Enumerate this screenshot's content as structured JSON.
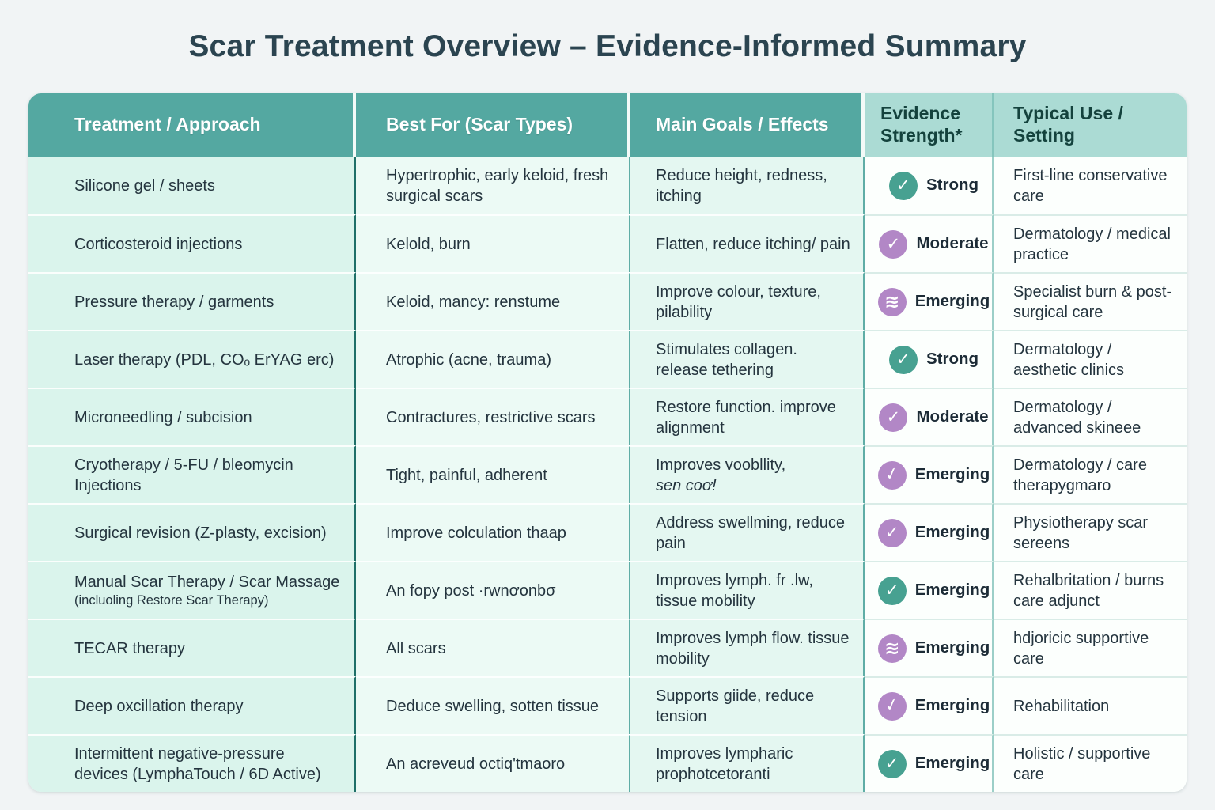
{
  "page": {
    "title": "Scar Treatment Overview – Evidence-Informed Summary",
    "background_color": "#f1f4f5"
  },
  "table": {
    "colors": {
      "header_teal": "#54a8a1",
      "header_light_teal": "#abdbd4",
      "badge_green": "#47a191",
      "badge_purple": "#b287c6",
      "mint_cell": "#daf4ec",
      "white_cell": "#fcfffd"
    },
    "headers": [
      {
        "label": "Treatment / Approach"
      },
      {
        "label": "Best For (Scar Types)"
      },
      {
        "label": "Main Goals / Effects"
      },
      {
        "label": "Evidence Strength*"
      },
      {
        "label": "Typical Use / Setting"
      }
    ],
    "rows": [
      {
        "treatment": "Silicone gel / sheets",
        "best_for": "Hypertrophic, early keloid, fresh surgical scars",
        "goals": "Reduce height, redness, itching",
        "evidence": {
          "label": "Strong",
          "color": "green",
          "icon": "check-icon"
        },
        "setting": "First-line conservative care"
      },
      {
        "treatment": "Corticosteroid injections",
        "best_for": "Kelold, burn",
        "goals": "Flatten, reduce itching/ pain",
        "evidence": {
          "label": "Moderate",
          "color": "purple",
          "icon": "check-icon"
        },
        "setting": "Dermatology / medical practice"
      },
      {
        "treatment": "Pressure therapy / garments",
        "best_for": "Keloid, mancy: renstume",
        "goals": "Improve colour, texture, pilability",
        "evidence": {
          "label": "Emerging",
          "color": "purple",
          "icon": "layers-icon"
        },
        "setting": "Specialist burn & post-surgical care"
      },
      {
        "treatment": "Laser therapy (PDL, COₒ ErYAG erc)",
        "best_for": "Atrophic (acne, trauma)",
        "goals": "Stimulates collagen. release tethering",
        "evidence": {
          "label": "Strong",
          "color": "green",
          "icon": "check-icon"
        },
        "setting": "Dermatology / aesthetic clinics"
      },
      {
        "treatment": "Microneedling / subcision",
        "best_for": "Contractures, restrictive scars",
        "goals": "Restore function. improve alignment",
        "evidence": {
          "label": "Moderate",
          "color": "purple",
          "icon": "check-icon"
        },
        "setting": "Dermatology / advanced skineee"
      },
      {
        "treatment": "Cryotherapy / 5-FU / bleomycin Injections",
        "best_for": "Tight, painful,  adherent",
        "goals": "Improves voobllity,",
        "goals_sub": "sen coơ!",
        "evidence": {
          "label": "Emerging",
          "color": "purple",
          "icon": "swirl-check-icon"
        },
        "setting": "Dermatology / care therapygmaro"
      },
      {
        "treatment": "Surgical revision (Z-plasty, excision)",
        "best_for": "Improve colculation  thaap",
        "goals": "Address swellming, reduce pain",
        "evidence": {
          "label": "Emerging",
          "color": "purple",
          "icon": "check-icon"
        },
        "setting": "Physiotherapy scar sereens"
      },
      {
        "treatment": "Manual Scar Therapy / Scar Massage",
        "treatment_note": "(incluoling Restore Scar Therapy)",
        "best_for": "An fopy post ·rwnơonbσ",
        "goals": "Improves lymph. fr .lw, tissue mobility",
        "evidence": {
          "label": "Emerging",
          "color": "green",
          "icon": "check-icon"
        },
        "setting": "Rehalbritation / burns care adjunct"
      },
      {
        "treatment": "TECAR therapy",
        "best_for": "All scars",
        "goals": "Improves lymph flow. tissue mobility",
        "evidence": {
          "label": "Emerging",
          "color": "purple",
          "icon": "layers-icon"
        },
        "setting": "hdjoricic supportive care"
      },
      {
        "treatment": "Deep oxcillation therapy",
        "best_for": "Deduce swelling, sotten tissue",
        "goals": "Supports giide, reduce tension",
        "evidence": {
          "label": "Emerging",
          "color": "purple",
          "icon": "swirl-check-icon"
        },
        "setting": "Rehabilitation"
      },
      {
        "treatment": "Intermittent negative-pressure devices (LymphaTouch / 6D Active)",
        "best_for": "An acreveud octiq'tmaoro",
        "goals": "Improves lympharic prophotcetoranti",
        "evidence": {
          "label": "Emerging",
          "color": "green",
          "icon": "check-icon"
        },
        "setting": "Holistic / supportive care"
      }
    ]
  }
}
